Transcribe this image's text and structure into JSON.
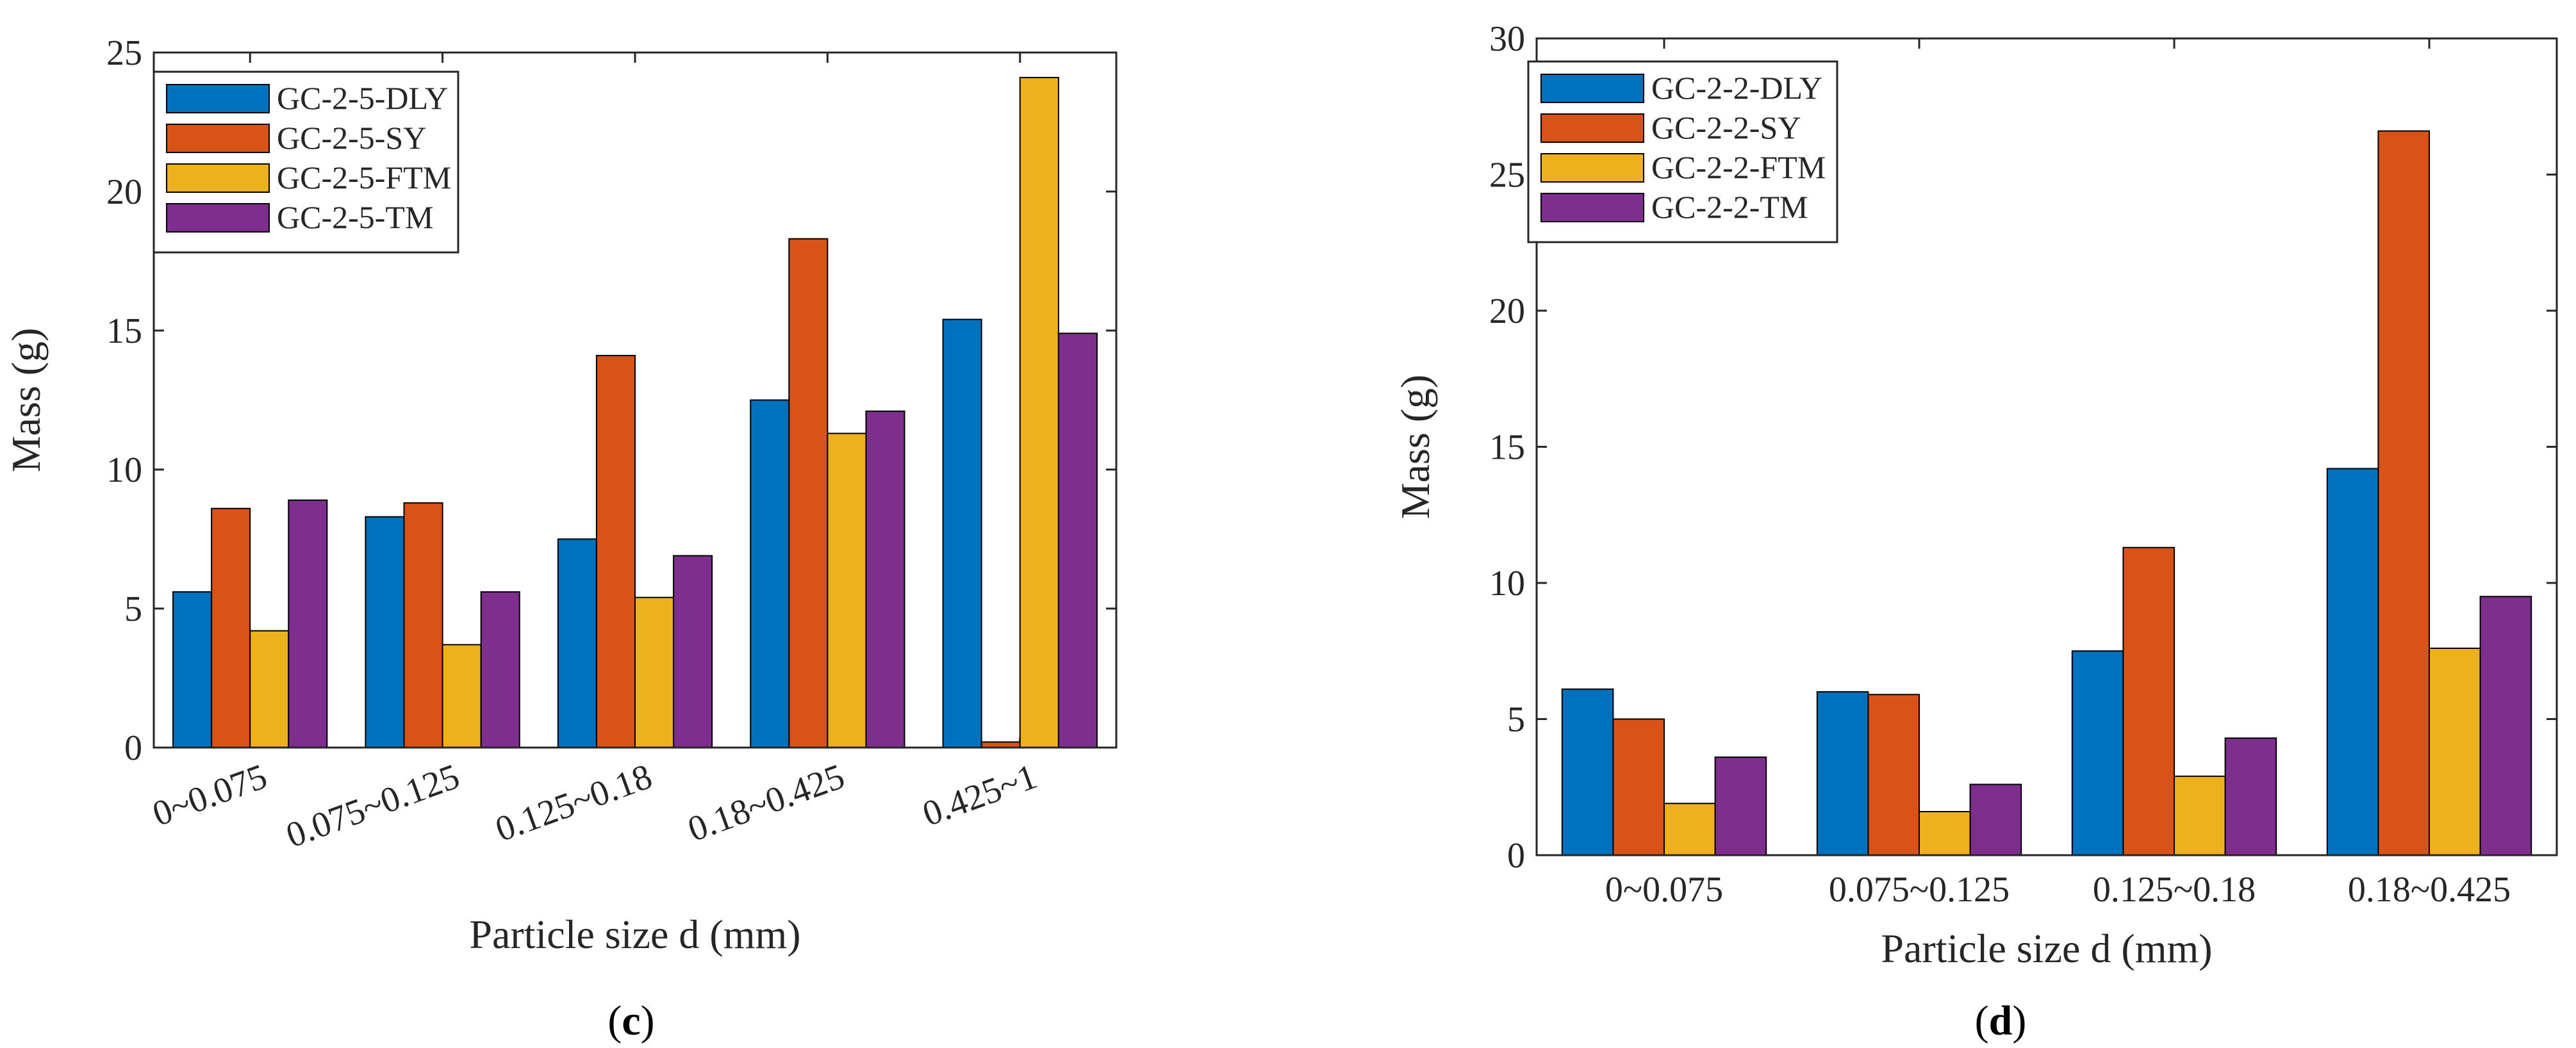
{
  "colors": [
    "#0072BD",
    "#D95319",
    "#EDB120",
    "#7E2F8E"
  ],
  "chart_data": [
    {
      "type": "bar",
      "panel": "c",
      "title": "",
      "xlabel": "Particle size d (mm)",
      "ylabel": "Mass (g)",
      "ylim": [
        0,
        25
      ],
      "yticks": [
        0,
        5,
        10,
        15,
        20,
        25
      ],
      "categories": [
        "0~0.075",
        "0.075~0.125",
        "0.125~0.18",
        "0.18~0.425",
        "0.425~1"
      ],
      "series": [
        {
          "name": "GC-2-5-DLY",
          "values": [
            5.6,
            8.3,
            7.5,
            12.5,
            15.4
          ]
        },
        {
          "name": "GC-2-5-SY",
          "values": [
            8.6,
            8.8,
            14.1,
            18.3,
            0.2
          ]
        },
        {
          "name": "GC-2-5-FTM",
          "values": [
            4.2,
            3.7,
            5.4,
            11.3,
            24.1
          ]
        },
        {
          "name": "GC-2-5-TM",
          "values": [
            8.9,
            5.6,
            6.9,
            12.1,
            14.9
          ]
        }
      ],
      "legend_position": "top-left",
      "caption_open": "(",
      "caption_letter": "c",
      "caption_close": ")"
    },
    {
      "type": "bar",
      "panel": "d",
      "title": "",
      "xlabel": "Particle size d (mm)",
      "ylabel": "Mass (g)",
      "ylim": [
        0,
        30
      ],
      "yticks": [
        0,
        5,
        10,
        15,
        20,
        25,
        30
      ],
      "categories": [
        "0~0.075",
        "0.075~0.125",
        "0.125~0.18",
        "0.18~0.425"
      ],
      "series": [
        {
          "name": "GC-2-2-DLY",
          "values": [
            6.1,
            6.0,
            7.5,
            14.2
          ]
        },
        {
          "name": "GC-2-2-SY",
          "values": [
            5.0,
            5.9,
            11.3,
            26.6
          ]
        },
        {
          "name": "GC-2-2-FTM",
          "values": [
            1.9,
            1.6,
            2.9,
            7.6
          ]
        },
        {
          "name": "GC-2-2-TM",
          "values": [
            3.6,
            2.6,
            4.3,
            9.5
          ]
        }
      ],
      "legend_position": "top-left",
      "caption_open": "(",
      "caption_letter": "d",
      "caption_close": ")"
    }
  ]
}
